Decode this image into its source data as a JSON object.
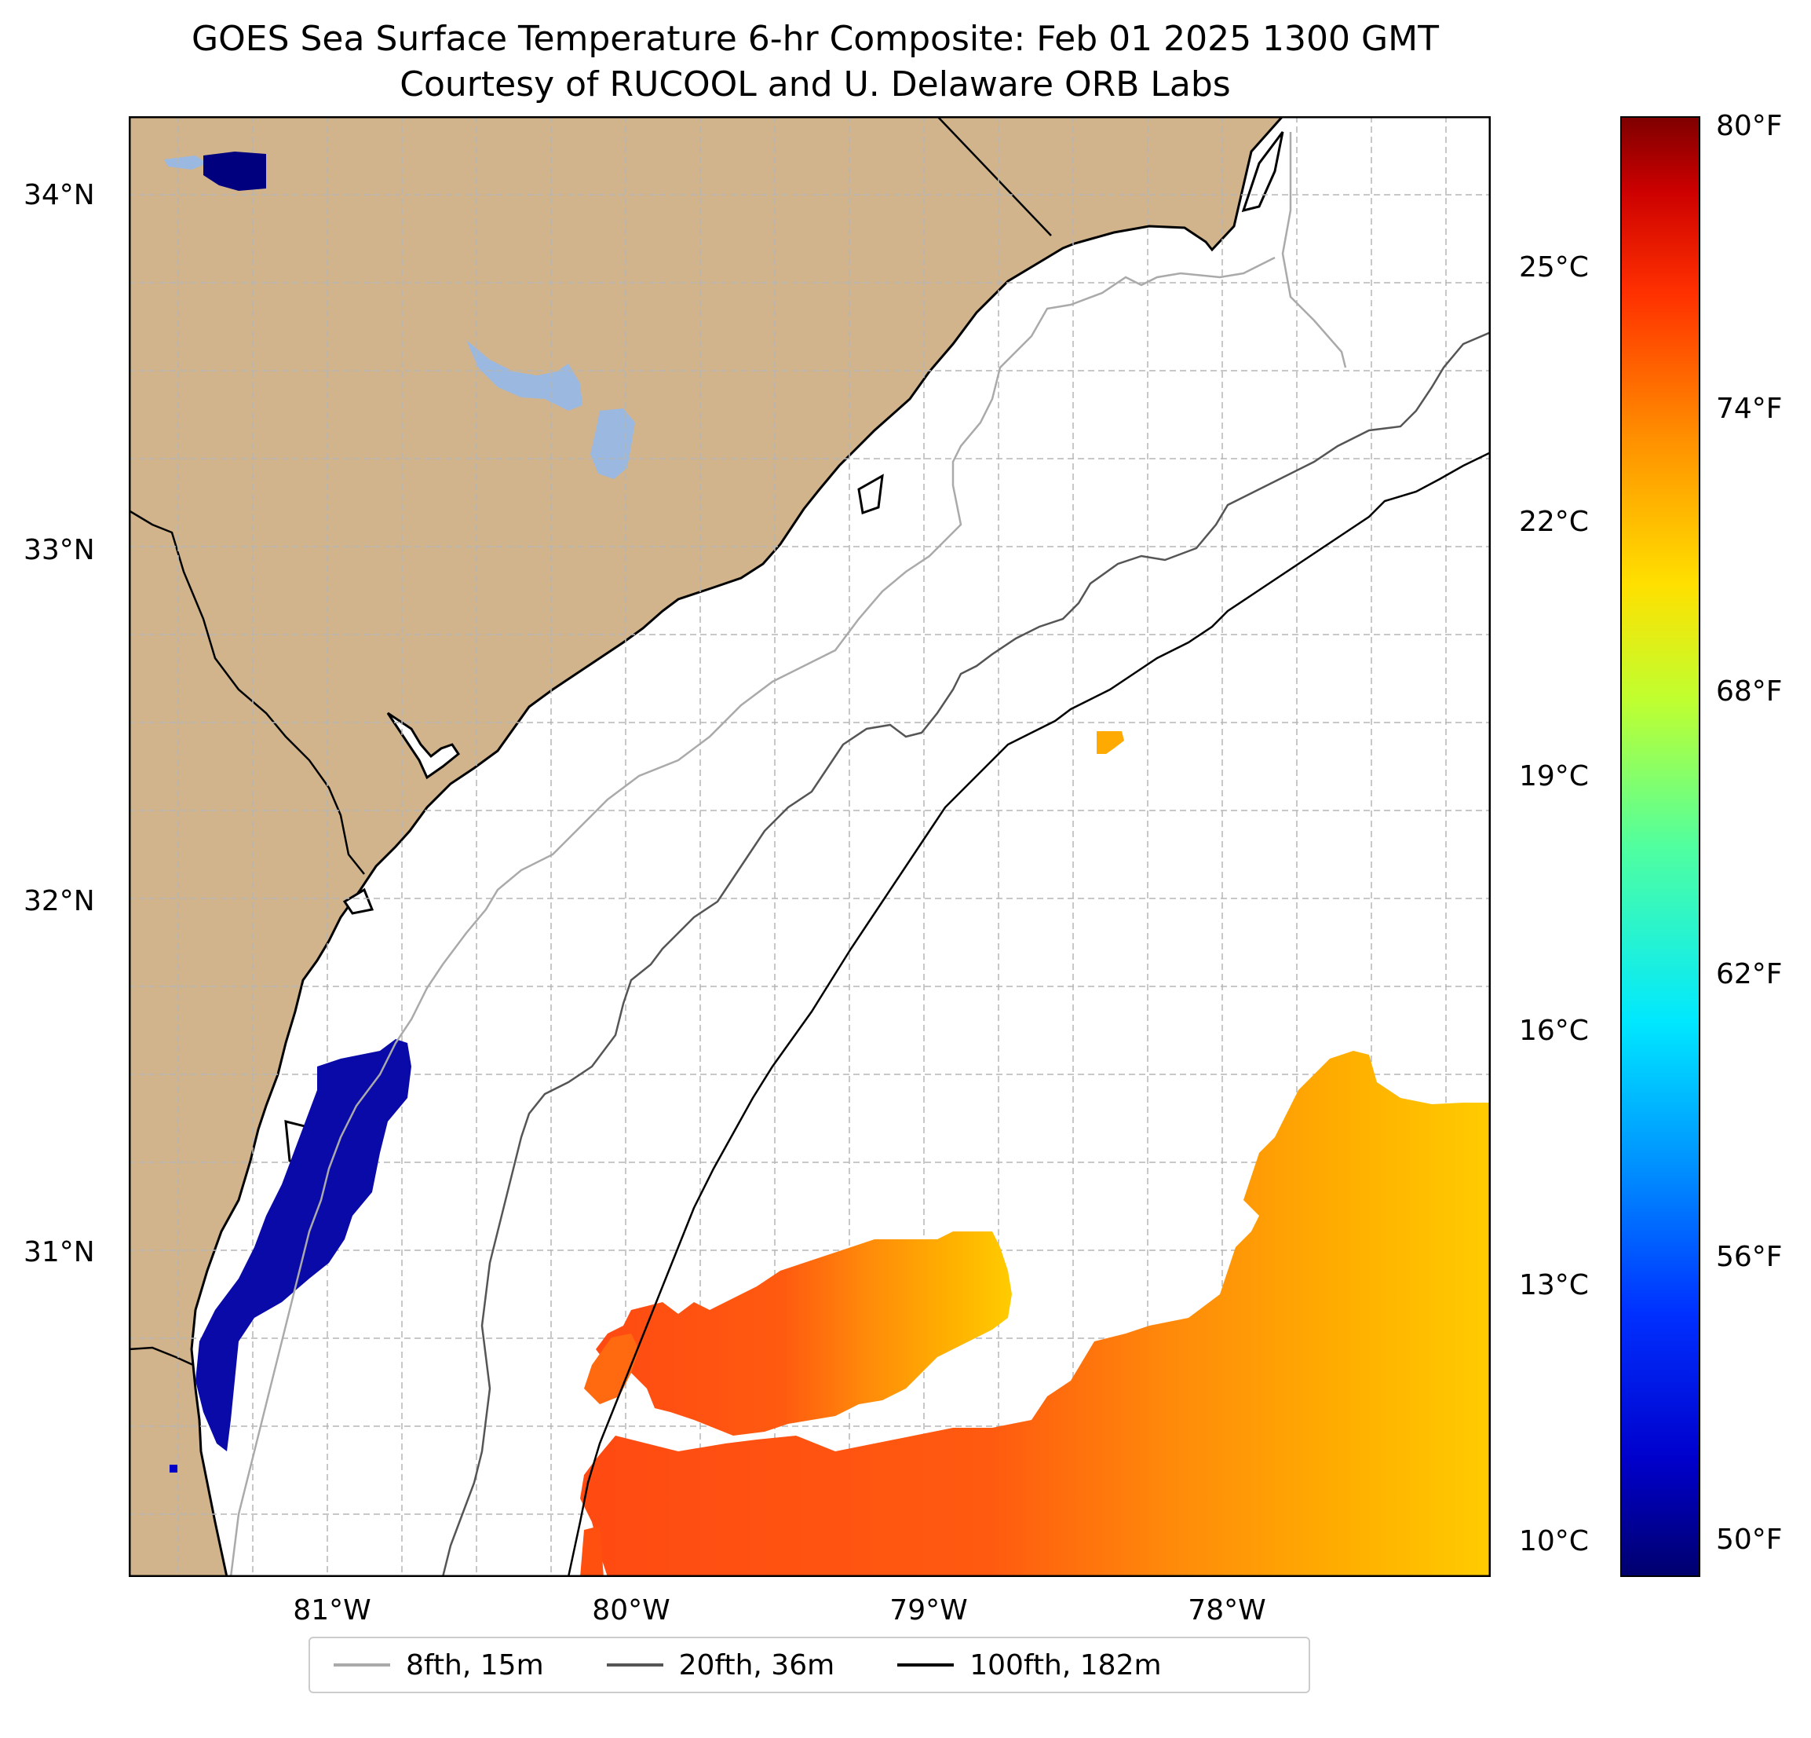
{
  "title_line1": "GOES Sea Surface Temperature 6-hr Composite: Feb 01 2025 1300 GMT",
  "title_line2": "Courtesy of RUCOOL and U. Delaware ORB Labs",
  "lat_labels": [
    "34°N",
    "33°N",
    "32°N",
    "31°N"
  ],
  "lon_labels": [
    "81°W",
    "80°W",
    "79°W",
    "78°W"
  ],
  "colorbar": {
    "celsius_labels": [
      "25°C",
      "22°C",
      "19°C",
      "16°C",
      "13°C",
      "10°C"
    ],
    "fahrenheit_labels": [
      "80°F",
      "74°F",
      "68°F",
      "62°F",
      "56°F",
      "50°F"
    ],
    "colormap": "jet",
    "range_f": [
      49.5,
      81
    ]
  },
  "legend": [
    {
      "label": "8fth, 15m",
      "color": "#aaaaaa"
    },
    {
      "label": "20fth, 36m",
      "color": "#555555"
    },
    {
      "label": "100fth, 182m",
      "color": "#000000"
    }
  ],
  "colors": {
    "land": "#d2b48c",
    "lake": "#9ab8e0",
    "cold_sst": "#0a0aa8",
    "warm_sst_red": "#ff4a12",
    "warm_sst_orange": "#ff8a0a",
    "warm_sst_yellow": "#ffcc00"
  }
}
